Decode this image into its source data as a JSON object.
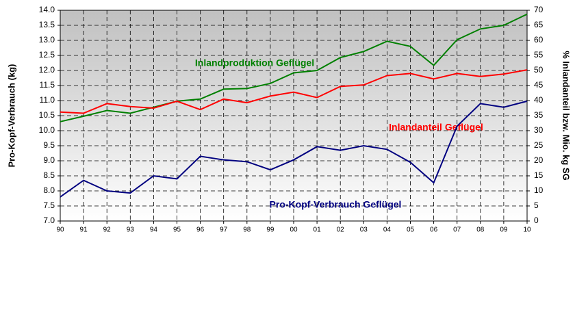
{
  "chart_data": {
    "type": "line",
    "y_label": "Pro-Kopf-Verbrauch (kg)",
    "y2_label": "% Inlandanteil  bzw. Mio. kg SG",
    "categories": [
      "90",
      "91",
      "92",
      "93",
      "94",
      "95",
      "96",
      "97",
      "98",
      "99",
      "00",
      "01",
      "02",
      "03",
      "04",
      "05",
      "06",
      "07",
      "08",
      "09",
      "10"
    ],
    "ylim": [
      7,
      14
    ],
    "yticks": [
      {
        "value": 7,
        "label": "7.0"
      },
      {
        "value": 7.5,
        "label": "7.5"
      },
      {
        "value": 8,
        "label": "8.0"
      },
      {
        "value": 8.5,
        "label": "8.5"
      },
      {
        "value": 9,
        "label": "9.0"
      },
      {
        "value": 9.5,
        "label": "9.5"
      },
      {
        "value": 10,
        "label": "10.0"
      },
      {
        "value": 10.5,
        "label": "10.5"
      },
      {
        "value": 11,
        "label": "11.0"
      },
      {
        "value": 11.5,
        "label": "11.5"
      },
      {
        "value": 12,
        "label": "12.0"
      },
      {
        "value": 12.5,
        "label": "12.5"
      },
      {
        "value": 13,
        "label": "13.0"
      },
      {
        "value": 13.5,
        "label": "13.5"
      },
      {
        "value": 14,
        "label": "14.0"
      }
    ],
    "y2lim": [
      0,
      70
    ],
    "y2ticks": [
      0,
      5,
      10,
      15,
      20,
      25,
      30,
      35,
      40,
      45,
      50,
      55,
      60,
      65,
      70
    ],
    "grid": true,
    "series": [
      {
        "name": "Inlandproduktion Geflügel",
        "color": "#008000",
        "axis": "y2",
        "values": [
          33,
          34.8,
          36.7,
          35.8,
          37.8,
          39.8,
          40.5,
          43.8,
          44,
          45.7,
          49.2,
          50,
          54.3,
          56.3,
          59.7,
          58,
          51.7,
          60.2,
          63.8,
          65,
          68.7
        ]
      },
      {
        "name": "Inlandanteil Geflügel",
        "color": "#ff0000",
        "axis": "y2",
        "values": [
          36.2,
          35.8,
          39,
          38,
          37.5,
          39.8,
          37,
          40.5,
          39.3,
          41.5,
          42.8,
          41,
          44.7,
          45.2,
          48.3,
          49,
          47.2,
          49,
          48,
          48.8,
          50.2
        ]
      },
      {
        "name": "Pro-Kopf-Verbrauch Geflügel",
        "color": "#000080",
        "values": [
          7.8,
          8.35,
          8.0,
          7.93,
          8.5,
          8.4,
          9.15,
          9.03,
          8.97,
          8.7,
          9.03,
          9.47,
          9.35,
          9.5,
          9.38,
          8.95,
          8.27,
          10.15,
          10.9,
          10.78,
          10.98
        ]
      }
    ]
  }
}
